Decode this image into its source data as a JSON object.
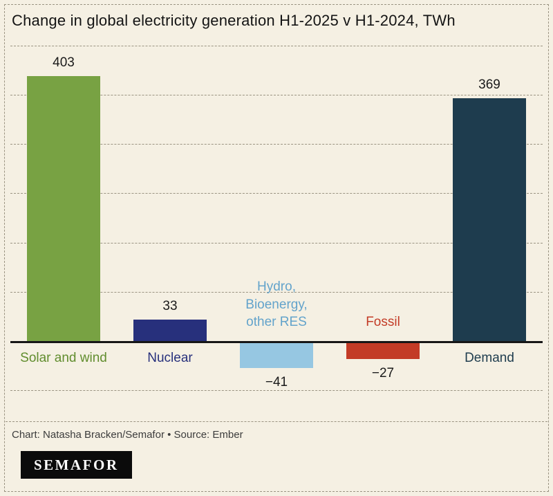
{
  "page": {
    "background": "#f5f0e3",
    "border_color": "#9a9381"
  },
  "chart_data": {
    "type": "bar",
    "title": "Change in global electricity generation H1-2025 v H1-2024, TWh",
    "unit": "TWh",
    "categories": [
      "Solar and wind",
      "Nuclear",
      "Hydro,\nBioenergy,\nother RES",
      "Fossil",
      "Demand"
    ],
    "values": [
      403,
      33,
      -41,
      -27,
      369
    ],
    "value_labels": [
      "403",
      "33",
      "−41",
      "−27",
      "369"
    ],
    "bar_colors": [
      "#78a243",
      "#27307c",
      "#96c7e2",
      "#c33b26",
      "#1e3c4e"
    ],
    "label_colors": [
      "#618d2e",
      "#27307c",
      "#63a3cb",
      "#c33b26",
      "#1e3c4e"
    ],
    "value_label_color": "#1a1a1a",
    "xlabel": "",
    "ylabel": "",
    "ylim": [
      -113,
      456
    ],
    "gridline_values": [
      450,
      375,
      300,
      225,
      150,
      75,
      -75
    ],
    "grid": "horizontal dashed",
    "legend": "none"
  },
  "footer": {
    "credit": "Chart: Natasha Bracken/Semafor • Source: Ember",
    "logo_text": "SEMAFOR"
  }
}
